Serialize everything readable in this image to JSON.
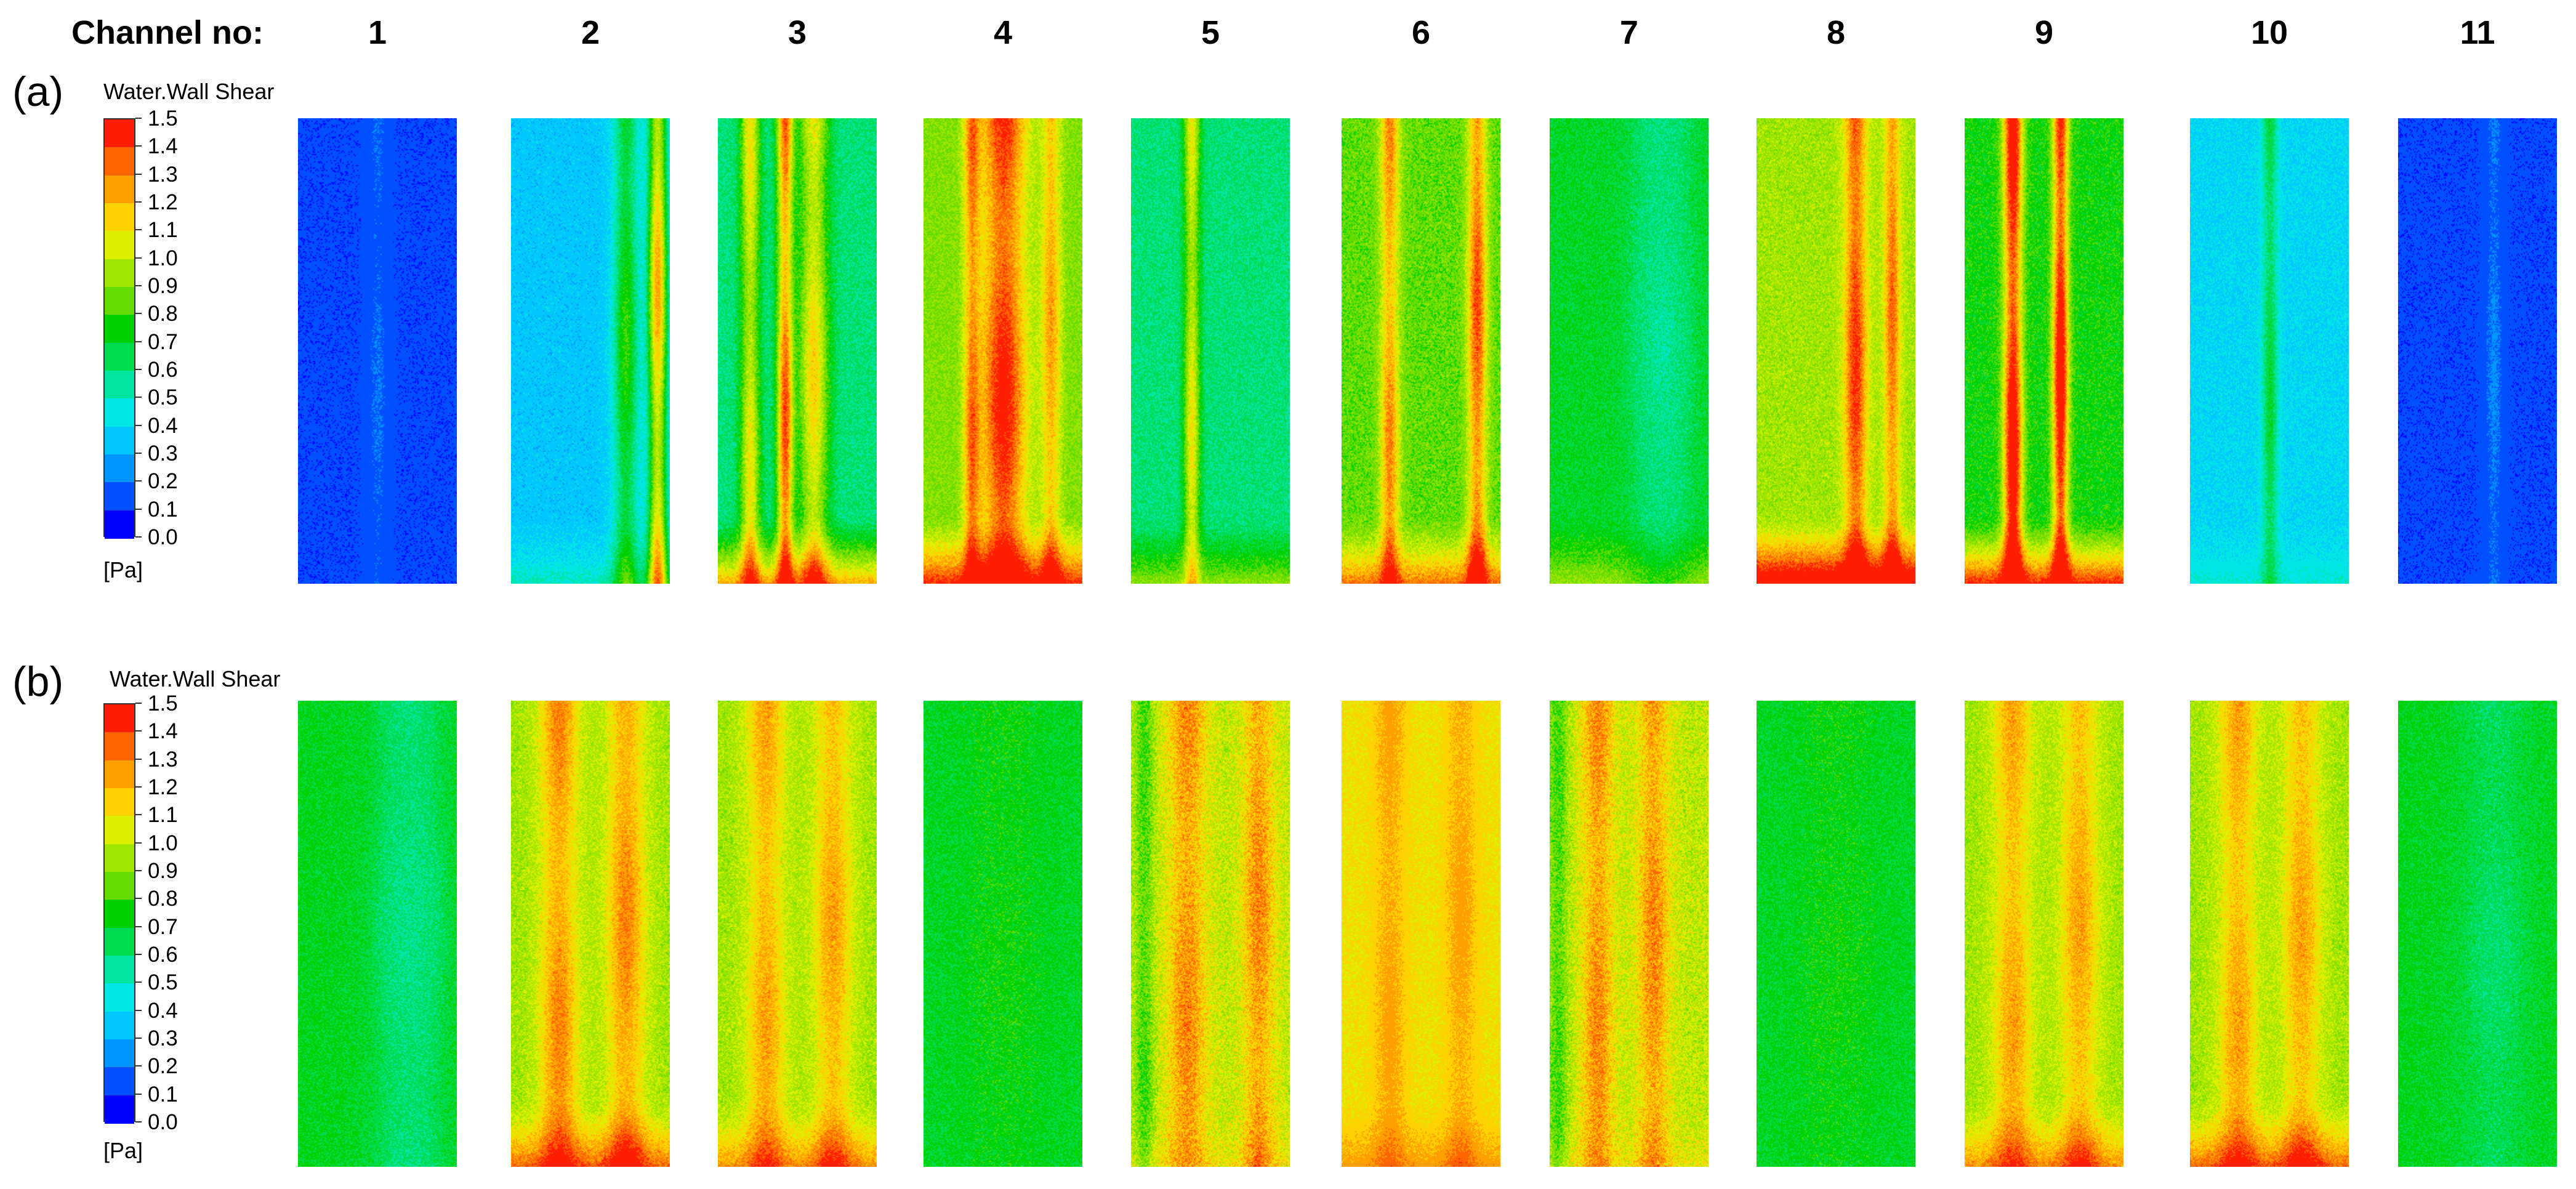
{
  "header": {
    "label": "Channel no:"
  },
  "channels": [
    "1",
    "2",
    "3",
    "4",
    "5",
    "6",
    "7",
    "8",
    "9",
    "10",
    "11"
  ],
  "panels": [
    {
      "label": "(a)",
      "legend": {
        "title": "Water.Wall Shear",
        "unit": "[Pa]",
        "ticks": [
          "1.5",
          "1.4",
          "1.3",
          "1.2",
          "1.1",
          "1.0",
          "0.9",
          "0.8",
          "0.7",
          "0.6",
          "0.5",
          "0.4",
          "0.3",
          "0.2",
          "0.1",
          "0.0"
        ]
      },
      "contours": [
        {
          "channel": "1",
          "base": 0.12,
          "bands": [
            [
              0.5,
              0.07,
              0.08
            ]
          ],
          "noise": 0.03,
          "bottom": 0.0
        },
        {
          "channel": "2",
          "base": 0.35,
          "bands": [
            [
              0.92,
              0.06,
              0.9
            ],
            [
              0.72,
              0.08,
              0.45
            ]
          ],
          "noise": 0.06,
          "bottom": 0.2
        },
        {
          "channel": "3",
          "base": 0.6,
          "bands": [
            [
              0.42,
              0.05,
              0.8
            ],
            [
              0.6,
              0.09,
              0.55
            ],
            [
              0.2,
              0.06,
              0.5
            ]
          ],
          "noise": 0.08,
          "bottom": 0.8
        },
        {
          "channel": "4",
          "base": 0.9,
          "bands": [
            [
              0.5,
              0.14,
              0.6
            ],
            [
              0.3,
              0.05,
              0.4
            ],
            [
              0.8,
              0.06,
              0.35
            ]
          ],
          "noise": 0.08,
          "bottom": 0.7
        },
        {
          "channel": "5",
          "base": 0.6,
          "bands": [
            [
              0.38,
              0.05,
              0.5
            ]
          ],
          "noise": 0.07,
          "bottom": 0.4
        },
        {
          "channel": "6",
          "base": 0.85,
          "bands": [
            [
              0.3,
              0.06,
              0.45
            ],
            [
              0.85,
              0.06,
              0.55
            ]
          ],
          "noise": 0.09,
          "bottom": 0.6
        },
        {
          "channel": "7",
          "base": 0.7,
          "bands": [
            [
              0.7,
              0.2,
              -0.15
            ]
          ],
          "noise": 0.07,
          "bottom": 0.3
        },
        {
          "channel": "8",
          "base": 0.95,
          "bands": [
            [
              0.62,
              0.07,
              0.5
            ],
            [
              0.85,
              0.05,
              0.4
            ]
          ],
          "noise": 0.08,
          "bottom": 0.9
        },
        {
          "channel": "9",
          "base": 0.75,
          "bands": [
            [
              0.3,
              0.06,
              0.85
            ],
            [
              0.6,
              0.05,
              0.85
            ]
          ],
          "noise": 0.08,
          "bottom": 0.9
        },
        {
          "channel": "10",
          "base": 0.4,
          "bands": [
            [
              0.5,
              0.05,
              0.3
            ]
          ],
          "noise": 0.05,
          "bottom": 0.1
        },
        {
          "channel": "11",
          "base": 0.12,
          "bands": [
            [
              0.6,
              0.06,
              0.1
            ]
          ],
          "noise": 0.03,
          "bottom": 0.0
        }
      ]
    },
    {
      "label": "(b)",
      "legend": {
        "title": "Water.Wall Shear",
        "unit": "[Pa]",
        "ticks": [
          "1.5",
          "1.4",
          "1.3",
          "1.2",
          "1.1",
          "1.0",
          "0.9",
          "0.8",
          "0.7",
          "0.6",
          "0.5",
          "0.4",
          "0.3",
          "0.2",
          "0.1",
          "0.0"
        ]
      },
      "contours": [
        {
          "channel": "1",
          "base": 0.72,
          "bands": [
            [
              0.7,
              0.25,
              -0.15
            ]
          ],
          "noise": 0.07,
          "bottom": 0.0
        },
        {
          "channel": "2",
          "base": 0.95,
          "bands": [
            [
              0.3,
              0.12,
              0.35
            ],
            [
              0.72,
              0.12,
              0.35
            ]
          ],
          "noise": 0.08,
          "bottom": 0.5
        },
        {
          "channel": "3",
          "base": 0.95,
          "bands": [
            [
              0.3,
              0.12,
              0.3
            ],
            [
              0.72,
              0.12,
              0.3
            ]
          ],
          "noise": 0.08,
          "bottom": 0.4
        },
        {
          "channel": "4",
          "base": 0.7,
          "bands": [
            [
              0.5,
              0.3,
              0.05
            ]
          ],
          "noise": 0.08,
          "bottom": 0.0
        },
        {
          "channel": "5",
          "base": 1.0,
          "bands": [
            [
              0.35,
              0.12,
              0.3
            ],
            [
              0.8,
              0.1,
              0.3
            ],
            [
              0.08,
              0.06,
              -0.2
            ]
          ],
          "noise": 0.12,
          "bottom": 0.1
        },
        {
          "channel": "6",
          "base": 1.1,
          "bands": [
            [
              0.3,
              0.1,
              0.15
            ],
            [
              0.75,
              0.1,
              0.15
            ]
          ],
          "noise": 0.05,
          "bottom": 0.2
        },
        {
          "channel": "7",
          "base": 1.0,
          "bands": [
            [
              0.3,
              0.1,
              0.3
            ],
            [
              0.65,
              0.1,
              0.3
            ],
            [
              0.05,
              0.06,
              -0.2
            ]
          ],
          "noise": 0.12,
          "bottom": 0.1
        },
        {
          "channel": "8",
          "base": 0.7,
          "bands": [
            [
              0.5,
              0.3,
              0.05
            ]
          ],
          "noise": 0.08,
          "bottom": 0.0
        },
        {
          "channel": "9",
          "base": 0.95,
          "bands": [
            [
              0.3,
              0.12,
              0.3
            ],
            [
              0.72,
              0.12,
              0.3
            ]
          ],
          "noise": 0.08,
          "bottom": 0.4
        },
        {
          "channel": "10",
          "base": 0.95,
          "bands": [
            [
              0.3,
              0.12,
              0.3
            ],
            [
              0.7,
              0.12,
              0.3
            ]
          ],
          "noise": 0.08,
          "bottom": 0.5
        },
        {
          "channel": "11",
          "base": 0.72,
          "bands": [
            [
              0.6,
              0.25,
              -0.1
            ]
          ],
          "noise": 0.07,
          "bottom": 0.0
        }
      ]
    }
  ],
  "colors": [
    "#0000ff",
    "#0050ff",
    "#0096ff",
    "#00c8ff",
    "#00e6e6",
    "#00e6a0",
    "#00dc50",
    "#00d200",
    "#64dc00",
    "#a0e600",
    "#dcf000",
    "#ffd200",
    "#ffa000",
    "#ff6400",
    "#ff1e00"
  ]
}
